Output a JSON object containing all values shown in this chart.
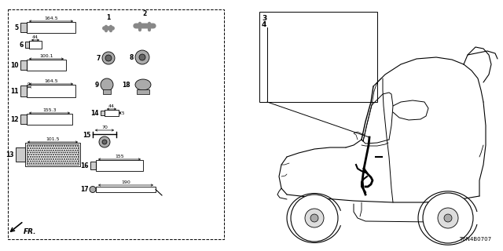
{
  "bg_color": "#ffffff",
  "title_code": "T6N4B0707",
  "fig_w": 6.4,
  "fig_h": 3.2,
  "dpi": 100
}
